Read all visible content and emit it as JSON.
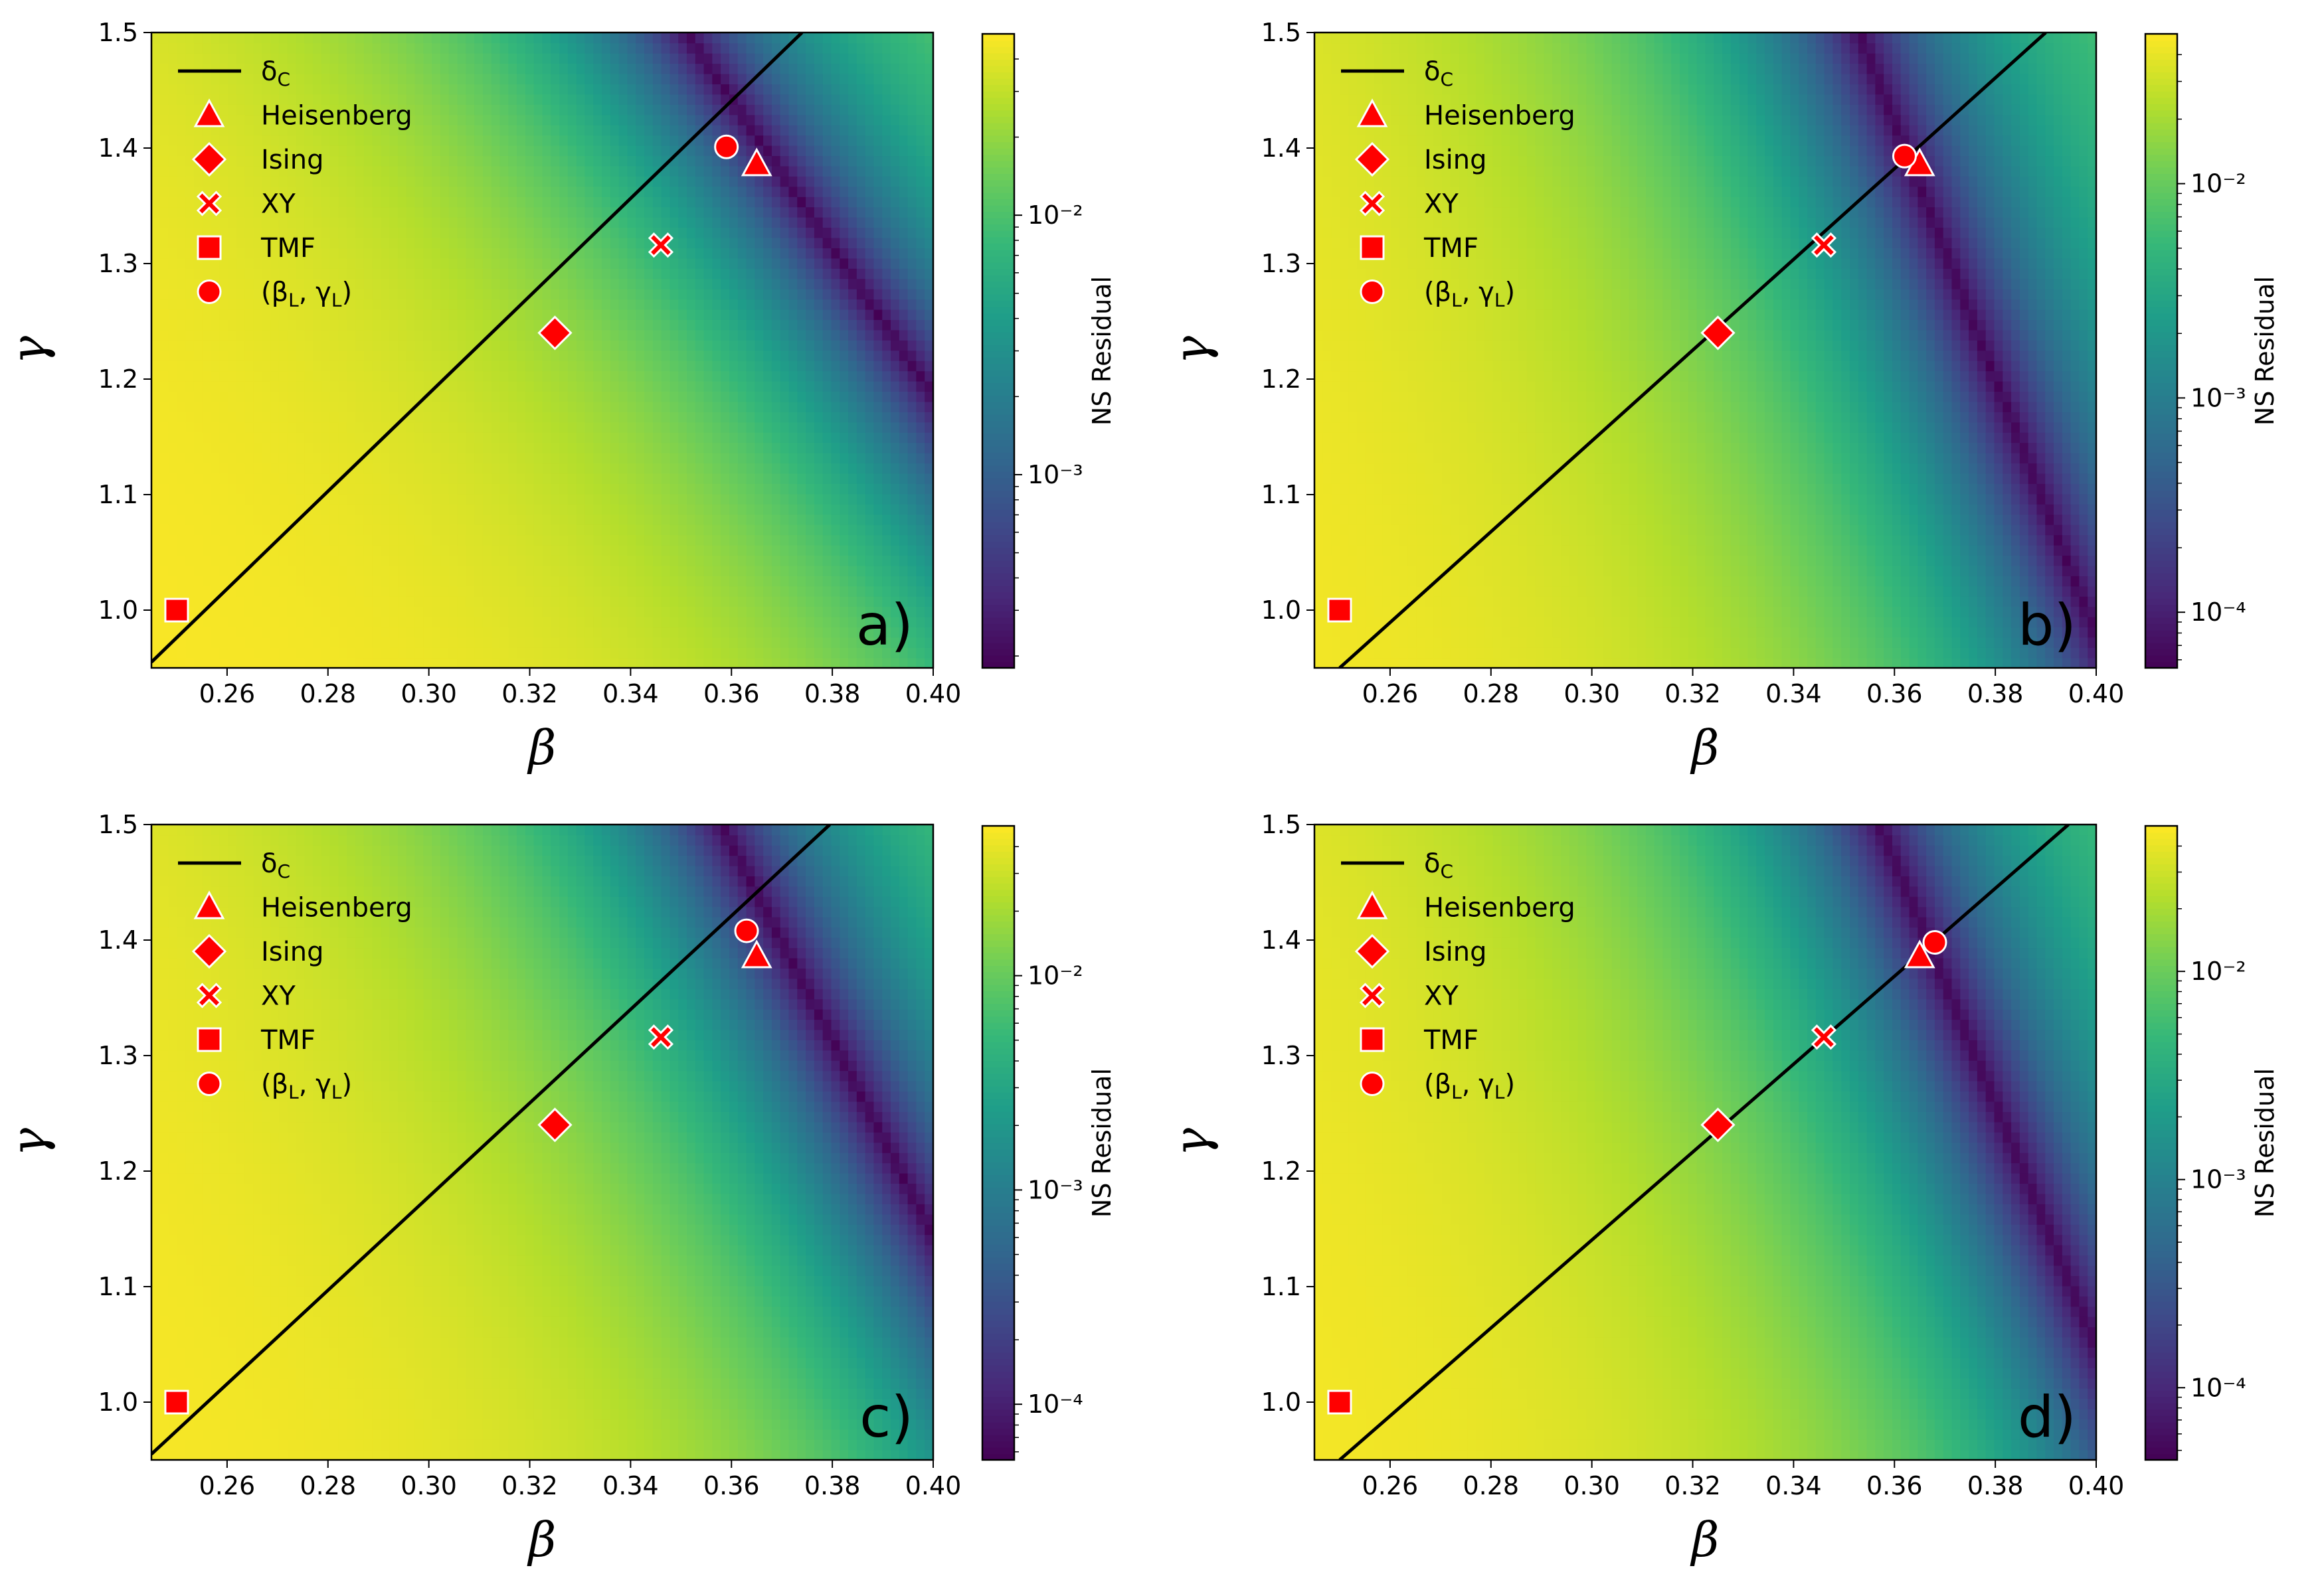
{
  "figure": {
    "colormap": "viridis",
    "marker_color": "#ff0000",
    "marker_edge_color": "#ffffff",
    "line_color": "#000000"
  },
  "chart_data": [
    {
      "type": "heatmap",
      "panel_label": "a)",
      "xlabel": "β",
      "ylabel": "γ",
      "xlim": [
        0.245,
        0.4
      ],
      "ylim": [
        0.95,
        1.5
      ],
      "xticks": [
        "0.26",
        "0.28",
        "0.30",
        "0.32",
        "0.34",
        "0.36",
        "0.38",
        "0.40"
      ],
      "yticks": [
        "1.0",
        "1.1",
        "1.2",
        "1.3",
        "1.4",
        "1.5"
      ],
      "colorbar": {
        "label": "NS Residual",
        "scale": "log",
        "range": [
          0.00018,
          0.05
        ],
        "ticks": [
          "10⁻³",
          "10⁻²"
        ]
      },
      "valley": {
        "b0": 0.351,
        "g0": 1.5,
        "slope": -0.156
      },
      "delta_c_line": {
        "name": "δC",
        "x": [
          0.245,
          0.374
        ],
        "y": [
          0.955,
          1.5
        ]
      },
      "points": [
        {
          "name": "Heisenberg",
          "marker": "triangle",
          "beta": 0.365,
          "gamma": 1.386
        },
        {
          "name": "Ising",
          "marker": "diamond",
          "beta": 0.325,
          "gamma": 1.24
        },
        {
          "name": "XY",
          "marker": "x",
          "beta": 0.346,
          "gamma": 1.316
        },
        {
          "name": "TMF",
          "marker": "square",
          "beta": 0.25,
          "gamma": 1.0
        },
        {
          "name": "(βL, γL)",
          "marker": "circle",
          "beta": 0.359,
          "gamma": 1.401
        }
      ]
    },
    {
      "type": "heatmap",
      "panel_label": "b)",
      "xlabel": "β",
      "ylabel": "γ",
      "xlim": [
        0.245,
        0.4
      ],
      "ylim": [
        0.95,
        1.5
      ],
      "xticks": [
        "0.26",
        "0.28",
        "0.30",
        "0.32",
        "0.34",
        "0.36",
        "0.38",
        "0.40"
      ],
      "yticks": [
        "1.0",
        "1.1",
        "1.2",
        "1.3",
        "1.4",
        "1.5"
      ],
      "colorbar": {
        "label": "NS Residual",
        "scale": "log",
        "range": [
          5.5e-05,
          0.05
        ],
        "ticks": [
          "10⁻⁴",
          "10⁻³",
          "10⁻²"
        ]
      },
      "valley": {
        "b0": 0.353,
        "g0": 1.5,
        "slope": -0.09
      },
      "delta_c_line": {
        "name": "δC",
        "x": [
          0.25,
          0.39
        ],
        "y": [
          0.95,
          1.5
        ]
      },
      "points": [
        {
          "name": "Heisenberg",
          "marker": "triangle",
          "beta": 0.365,
          "gamma": 1.386
        },
        {
          "name": "Ising",
          "marker": "diamond",
          "beta": 0.325,
          "gamma": 1.24
        },
        {
          "name": "XY",
          "marker": "x",
          "beta": 0.346,
          "gamma": 1.316
        },
        {
          "name": "TMF",
          "marker": "square",
          "beta": 0.25,
          "gamma": 1.0
        },
        {
          "name": "(βL, γL)",
          "marker": "circle",
          "beta": 0.362,
          "gamma": 1.393
        }
      ]
    },
    {
      "type": "heatmap",
      "panel_label": "c)",
      "xlabel": "β",
      "ylabel": "γ",
      "xlim": [
        0.245,
        0.4
      ],
      "ylim": [
        0.95,
        1.5
      ],
      "xticks": [
        "0.26",
        "0.28",
        "0.30",
        "0.32",
        "0.34",
        "0.36",
        "0.38",
        "0.40"
      ],
      "yticks": [
        "1.0",
        "1.1",
        "1.2",
        "1.3",
        "1.4",
        "1.5"
      ],
      "colorbar": {
        "label": "NS Residual",
        "scale": "log",
        "range": [
          5.5e-05,
          0.05
        ],
        "ticks": [
          "10⁻⁴",
          "10⁻³",
          "10⁻²"
        ]
      },
      "valley": {
        "b0": 0.358,
        "g0": 1.5,
        "slope": -0.118
      },
      "delta_c_line": {
        "name": "δC",
        "x": [
          0.245,
          0.3795
        ],
        "y": [
          0.955,
          1.5
        ]
      },
      "points": [
        {
          "name": "Heisenberg",
          "marker": "triangle",
          "beta": 0.365,
          "gamma": 1.386
        },
        {
          "name": "Ising",
          "marker": "diamond",
          "beta": 0.325,
          "gamma": 1.24
        },
        {
          "name": "XY",
          "marker": "x",
          "beta": 0.346,
          "gamma": 1.316
        },
        {
          "name": "TMF",
          "marker": "square",
          "beta": 0.25,
          "gamma": 1.0
        },
        {
          "name": "(βL, γL)",
          "marker": "circle",
          "beta": 0.363,
          "gamma": 1.408
        }
      ]
    },
    {
      "type": "heatmap",
      "panel_label": "d)",
      "xlabel": "β",
      "ylabel": "γ",
      "xlim": [
        0.245,
        0.4
      ],
      "ylim": [
        0.95,
        1.5
      ],
      "xticks": [
        "0.26",
        "0.28",
        "0.30",
        "0.32",
        "0.34",
        "0.36",
        "0.38",
        "0.40"
      ],
      "yticks": [
        "1.0",
        "1.1",
        "1.2",
        "1.3",
        "1.4",
        "1.5"
      ],
      "colorbar": {
        "label": "NS Residual",
        "scale": "log",
        "range": [
          4.5e-05,
          0.05
        ],
        "ticks": [
          "10⁻⁴",
          "10⁻³",
          "10⁻²"
        ]
      },
      "valley": {
        "b0": 0.357,
        "g0": 1.5,
        "slope": -0.095
      },
      "delta_c_line": {
        "name": "δC",
        "x": [
          0.25,
          0.3945
        ],
        "y": [
          0.95,
          1.5
        ]
      },
      "points": [
        {
          "name": "Heisenberg",
          "marker": "triangle",
          "beta": 0.365,
          "gamma": 1.386
        },
        {
          "name": "Ising",
          "marker": "diamond",
          "beta": 0.325,
          "gamma": 1.24
        },
        {
          "name": "XY",
          "marker": "x",
          "beta": 0.346,
          "gamma": 1.316
        },
        {
          "name": "TMF",
          "marker": "square",
          "beta": 0.25,
          "gamma": 1.0
        },
        {
          "name": "(βL, γL)",
          "marker": "circle",
          "beta": 0.368,
          "gamma": 1.398
        }
      ]
    }
  ]
}
